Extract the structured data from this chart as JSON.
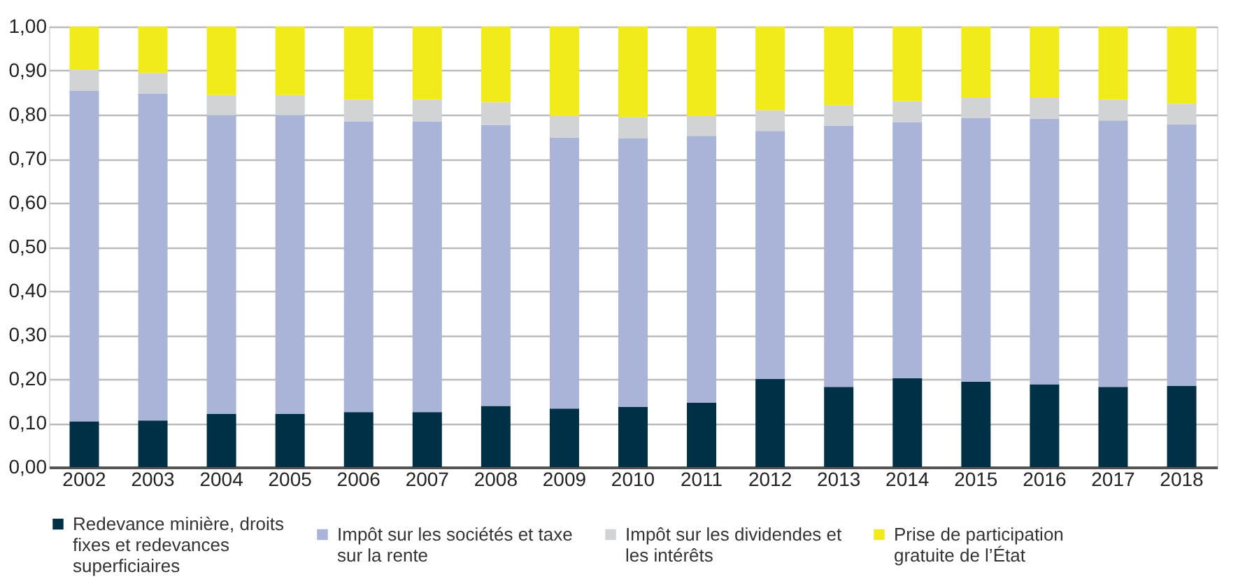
{
  "chart_data": {
    "type": "bar",
    "stacked": true,
    "categories": [
      "2002",
      "2003",
      "2004",
      "2005",
      "2006",
      "2007",
      "2008",
      "2009",
      "2010",
      "2011",
      "2012",
      "2013",
      "2014",
      "2015",
      "2016",
      "2017",
      "2018"
    ],
    "series": [
      {
        "name": "Redevance minière, droits fixes et redevances superficiaires",
        "color": "#003045",
        "values": [
          0.104,
          0.106,
          0.121,
          0.121,
          0.125,
          0.125,
          0.139,
          0.133,
          0.137,
          0.146,
          0.2,
          0.182,
          0.202,
          0.194,
          0.188,
          0.182,
          0.184
        ]
      },
      {
        "name": "Impôt sur les sociétés et taxe sur la rente",
        "color": "#aab3d8",
        "values": [
          0.75,
          0.742,
          0.678,
          0.678,
          0.66,
          0.66,
          0.638,
          0.615,
          0.609,
          0.606,
          0.563,
          0.593,
          0.581,
          0.599,
          0.603,
          0.605,
          0.594
        ]
      },
      {
        "name": "Impôt sur les dividendes et les intérêts",
        "color": "#d1d3d4",
        "values": [
          0.048,
          0.047,
          0.046,
          0.046,
          0.049,
          0.049,
          0.051,
          0.049,
          0.049,
          0.045,
          0.047,
          0.047,
          0.048,
          0.045,
          0.047,
          0.047,
          0.047
        ]
      },
      {
        "name": "Prise de participation gratuite de l’État",
        "color": "#f2eb1c",
        "values": [
          0.098,
          0.105,
          0.155,
          0.155,
          0.166,
          0.166,
          0.172,
          0.203,
          0.205,
          0.203,
          0.19,
          0.178,
          0.169,
          0.162,
          0.162,
          0.166,
          0.175
        ]
      }
    ],
    "ylim": [
      0,
      1
    ],
    "yticks": [
      {
        "value": 0,
        "label": "0,00"
      },
      {
        "value": 0.1,
        "label": "0,10"
      },
      {
        "value": 0.2,
        "label": "0,20"
      },
      {
        "value": 0.3,
        "label": "0,30"
      },
      {
        "value": 0.4,
        "label": "0,40"
      },
      {
        "value": 0.5,
        "label": "0,50"
      },
      {
        "value": 0.6,
        "label": "0,60"
      },
      {
        "value": 0.7,
        "label": "0,70"
      },
      {
        "value": 0.8,
        "label": "0,80"
      },
      {
        "value": 0.9,
        "label": "0,90"
      },
      {
        "value": 1,
        "label": "1,00"
      }
    ],
    "grid": "y",
    "legend": "bottom"
  }
}
